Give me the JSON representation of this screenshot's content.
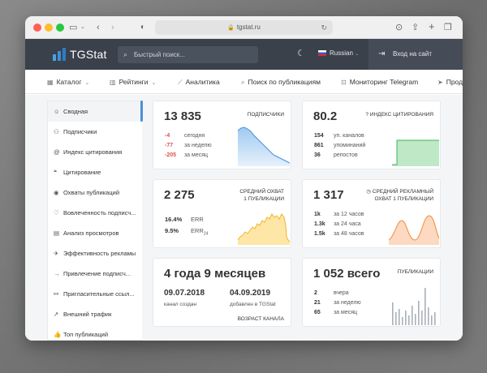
{
  "browser": {
    "url": "tgstat.ru"
  },
  "header": {
    "logo_text": "TGStat",
    "search_placeholder": "Быстрый поиск...",
    "language": "Russian",
    "login": "Вход на сайт"
  },
  "nav": {
    "items": [
      {
        "label": "Каталог",
        "icon": "grid-icon",
        "dropdown": true
      },
      {
        "label": "Рейтинги",
        "icon": "chart-bar-icon",
        "dropdown": true
      },
      {
        "label": "Аналитика",
        "icon": "trend-icon",
        "dropdown": false
      },
      {
        "label": "Поиск по публикациям",
        "icon": "search-icon",
        "dropdown": false
      },
      {
        "label": "Мониторинг Telegram",
        "icon": "monitor-icon",
        "dropdown": false
      },
      {
        "label": "Прод",
        "icon": "send-icon",
        "dropdown": false
      }
    ]
  },
  "sidebar": {
    "items": [
      {
        "label": "Сводная",
        "active": true
      },
      {
        "label": "Подписчики"
      },
      {
        "label": "Индекс цитирования"
      },
      {
        "label": "Цитирование"
      },
      {
        "label": "Охваты публикаций"
      },
      {
        "label": "Вовлеченность подписч..."
      },
      {
        "label": "Анализ просмотров"
      },
      {
        "label": "Эффективность рекламы"
      },
      {
        "label": "Привлечение подписч..."
      },
      {
        "label": "Пригласительные ссыл..."
      },
      {
        "label": "Внешний трафик"
      },
      {
        "label": "Топ публикаций"
      }
    ]
  },
  "cards": {
    "subscribers": {
      "value": "13 835",
      "caption": "ПОДПИСЧИКИ",
      "rows": [
        {
          "num": "-4",
          "label": "сегодня"
        },
        {
          "num": "-77",
          "label": "за неделю"
        },
        {
          "num": "-205",
          "label": "за месяц"
        }
      ]
    },
    "citation": {
      "value": "80.2",
      "caption": "ИНДЕКС ЦИТИРОВАНИЯ",
      "rows": [
        {
          "num": "154",
          "label": "уп. каналов"
        },
        {
          "num": "861",
          "label": "упоминаний"
        },
        {
          "num": "36",
          "label": "репостов"
        }
      ]
    },
    "reach": {
      "value": "2 275",
      "caption_line1": "СРЕДНИЙ ОХВАТ",
      "caption_line2": "1 ПУБЛИКАЦИИ",
      "rows": [
        {
          "num": "16.4%",
          "label": "ERR"
        },
        {
          "num": "9.5%",
          "label": "ERR",
          "sub": "24"
        }
      ]
    },
    "ad_reach": {
      "value": "1 317",
      "caption_line1": "СРЕДНИЙ РЕКЛАМНЫЙ",
      "caption_line2": "ОХВАТ 1 ПУБЛИКАЦИИ",
      "rows": [
        {
          "num": "1k",
          "label": "за 12 часов"
        },
        {
          "num": "1.3k",
          "label": "за 24 часа"
        },
        {
          "num": "1.5k",
          "label": "за 48 часов"
        }
      ]
    },
    "age": {
      "value": "4 года 9 месяцев",
      "created_date": "09.07.2018",
      "created_label": "канал создан",
      "added_date": "04.09.2019",
      "added_label": "добавлен в TGStat",
      "caption": "ВОЗРАСТ КАНАЛА"
    },
    "posts": {
      "value": "1 052 всего",
      "caption": "ПУБЛИКАЦИИ",
      "rows": [
        {
          "num": "2",
          "label": "вчера"
        },
        {
          "num": "21",
          "label": "за неделю"
        },
        {
          "num": "65",
          "label": "за месяц"
        }
      ]
    }
  }
}
